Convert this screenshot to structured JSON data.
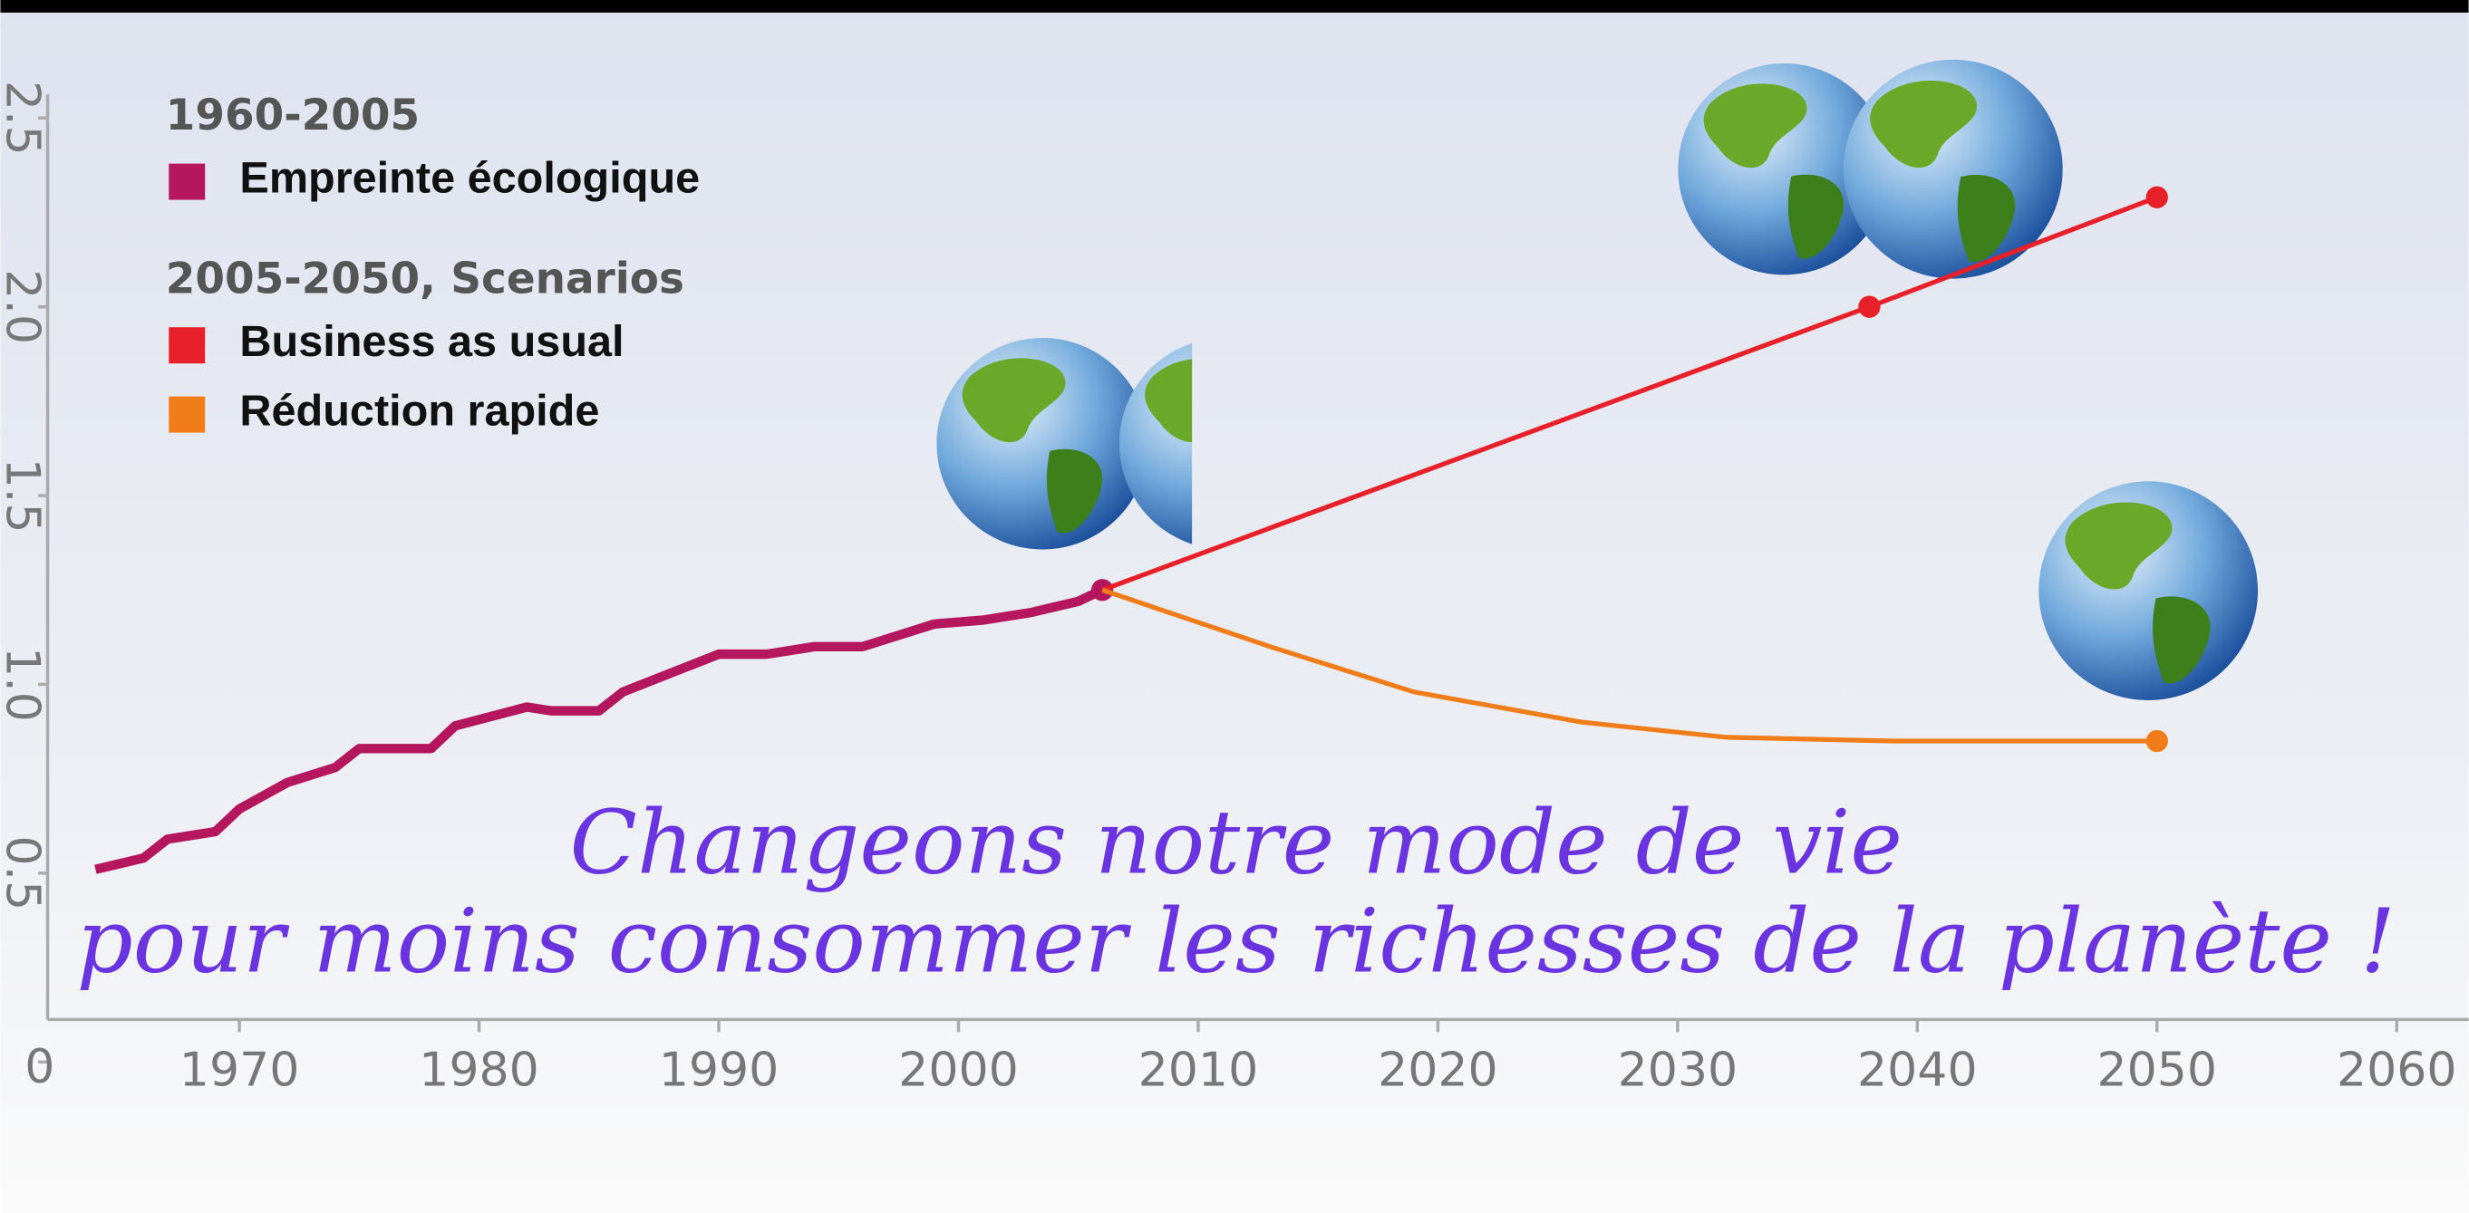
{
  "chart_data": {
    "type": "line",
    "legend_groups": [
      "1960-2005",
      "2005-2050, Scenarios"
    ],
    "annotation": [
      "Changeons notre mode de vie",
      "pour moins consommer les richesses de la planète !"
    ],
    "xlim": [
      1962,
      2063
    ],
    "xticks": [
      1970,
      1980,
      1990,
      2000,
      2010,
      2020,
      2030,
      2040,
      2050,
      2060
    ],
    "ylim": [
      0,
      2.75
    ],
    "yticks": [
      0,
      0.5,
      {
        "value": 1,
        "label": "1.0"
      },
      1.5,
      {
        "value": 2,
        "label": "2.0"
      },
      2.5
    ],
    "series": [
      {
        "name": "Empreinte écologique",
        "color": "#b5175e",
        "group": "1960-2005",
        "x": [
          1964,
          1966,
          1967,
          1969,
          1970,
          1972,
          1974,
          1975,
          1978,
          1979,
          1982,
          1983,
          1985,
          1986,
          1988,
          1990,
          1992,
          1994,
          1996,
          1999,
          2001,
          2003,
          2005,
          2006
        ],
        "values": [
          0.51,
          0.54,
          0.59,
          0.61,
          0.67,
          0.74,
          0.78,
          0.83,
          0.83,
          0.89,
          0.94,
          0.93,
          0.93,
          0.98,
          1.03,
          1.08,
          1.08,
          1.1,
          1.1,
          1.16,
          1.17,
          1.19,
          1.22,
          1.25
        ]
      },
      {
        "name": "Business as usual",
        "color": "#e8202a",
        "group": "2005-2050, Scenarios",
        "x": [
          2006,
          2038,
          2050
        ],
        "values": [
          1.25,
          2.0,
          2.29
        ]
      },
      {
        "name": "Réduction rapide",
        "color": "#f07d1a",
        "group": "2005-2050, Scenarios",
        "x": [
          2006,
          2013,
          2019,
          2026,
          2032,
          2039,
          2050
        ],
        "values": [
          1.25,
          1.1,
          0.98,
          0.9,
          0.86,
          0.85,
          0.85
        ]
      }
    ]
  }
}
